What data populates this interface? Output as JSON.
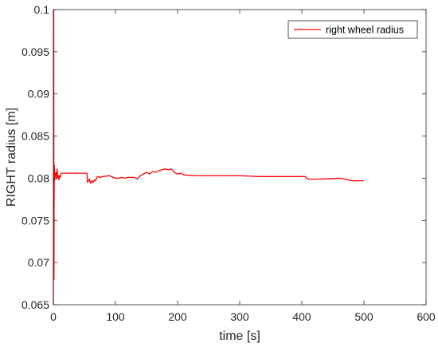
{
  "chart_data": {
    "type": "line",
    "xlabel": "time [s]",
    "ylabel": "RIGHT radius [m]",
    "xlim": [
      0,
      600
    ],
    "ylim": [
      0.065,
      0.1
    ],
    "xticks": [
      "0",
      "100",
      "200",
      "300",
      "400",
      "500",
      "600"
    ],
    "yticks": [
      "0.065",
      "0.07",
      "0.075",
      "0.08",
      "0.085",
      "0.09",
      "0.095",
      "0.1"
    ],
    "grid": false,
    "legend_position": "top-right",
    "series": [
      {
        "name": "right wheel radius",
        "color": "#ff0000",
        "x": [
          0,
          0.3,
          0.6,
          1.0,
          1.3,
          1.7,
          2.0,
          2.5,
          3.0,
          4.0,
          5.0,
          6.0,
          7.0,
          8.0,
          9.0,
          10.0,
          11.0,
          12.0,
          13.0,
          15.0,
          20.0,
          30.0,
          40.0,
          50.0,
          54.0,
          55.0,
          56.0,
          58.0,
          60.0,
          62.0,
          64.0,
          66.0,
          68.0,
          70.0,
          72.0,
          75.0,
          80.0,
          90.0,
          100.0,
          105.0,
          110.0,
          115.0,
          120.0,
          130.0,
          135.0,
          140.0,
          145.0,
          150.0,
          155.0,
          160.0,
          165.0,
          170.0,
          175.0,
          180.0,
          185.0,
          190.0,
          195.0,
          200.0,
          205.0,
          210.0,
          230.0,
          260.0,
          300.0,
          330.0,
          350.0,
          380.0,
          405.0,
          410.0,
          430.0,
          460.0,
          470.0,
          480.0,
          500.0
        ],
        "y": [
          0.065,
          0.075,
          0.1,
          0.068,
          0.078,
          0.0815,
          0.0797,
          0.0805,
          0.0802,
          0.0807,
          0.0799,
          0.0811,
          0.0801,
          0.0803,
          0.0798,
          0.0803,
          0.0801,
          0.0805,
          0.0806,
          0.0806,
          0.0806,
          0.0806,
          0.0806,
          0.0806,
          0.0806,
          0.0795,
          0.0796,
          0.0799,
          0.0794,
          0.0797,
          0.0795,
          0.0798,
          0.0797,
          0.0801,
          0.0802,
          0.0801,
          0.0802,
          0.0803,
          0.08,
          0.08,
          0.0801,
          0.08,
          0.0801,
          0.0801,
          0.0799,
          0.0803,
          0.0805,
          0.0807,
          0.0805,
          0.0808,
          0.0807,
          0.0809,
          0.081,
          0.0811,
          0.081,
          0.0811,
          0.0807,
          0.0805,
          0.0806,
          0.0804,
          0.0803,
          0.0803,
          0.0803,
          0.0802,
          0.0802,
          0.0802,
          0.0802,
          0.0799,
          0.0799,
          0.08,
          0.0799,
          0.0797,
          0.0797
        ]
      }
    ]
  }
}
